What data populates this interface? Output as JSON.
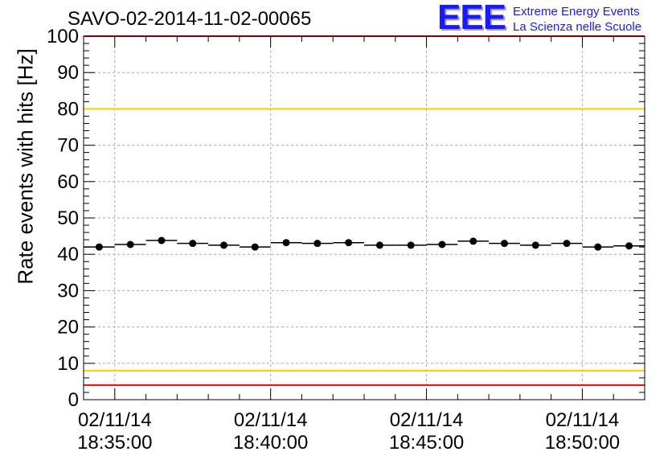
{
  "chart_data": {
    "type": "scatter",
    "title": "SAVO-02-2014-11-02-00065",
    "ylabel": "Rate events with hits [Hz]",
    "xlabel": "",
    "ylim": [
      0,
      100
    ],
    "yticks": [
      "0",
      "10",
      "20",
      "30",
      "40",
      "50",
      "60",
      "70",
      "80",
      "90",
      "100"
    ],
    "xlim": [
      "18:34:00",
      "18:52:00"
    ],
    "xticks": [
      {
        "date": "02/11/14",
        "time": "18:35:00"
      },
      {
        "date": "02/11/14",
        "time": "18:40:00"
      },
      {
        "date": "02/11/14",
        "time": "18:45:00"
      },
      {
        "date": "02/11/14",
        "time": "18:50:00"
      }
    ],
    "x": [
      "18:34:30",
      "18:35:30",
      "18:36:30",
      "18:37:30",
      "18:38:30",
      "18:39:30",
      "18:40:30",
      "18:41:30",
      "18:42:30",
      "18:43:30",
      "18:44:30",
      "18:45:30",
      "18:46:30",
      "18:47:30",
      "18:48:30",
      "18:49:30",
      "18:50:30",
      "18:51:30"
    ],
    "values": [
      42.0,
      42.7,
      43.8,
      43.0,
      42.5,
      42.0,
      43.2,
      43.0,
      43.2,
      42.5,
      42.5,
      42.7,
      43.6,
      43.0,
      42.5,
      43.0,
      42.0,
      42.3
    ],
    "reference_lines": [
      {
        "value": 100,
        "color": "#ff0000"
      },
      {
        "value": 80,
        "color": "#ffcc00"
      },
      {
        "value": 8,
        "color": "#ffcc00"
      },
      {
        "value": 4,
        "color": "#ff0000"
      }
    ],
    "grid": true,
    "marker_color": "#000000"
  },
  "logo": {
    "mark": "EEE",
    "line1": "Extreme Energy Events",
    "line2": "La Scienza nelle Scuole"
  }
}
